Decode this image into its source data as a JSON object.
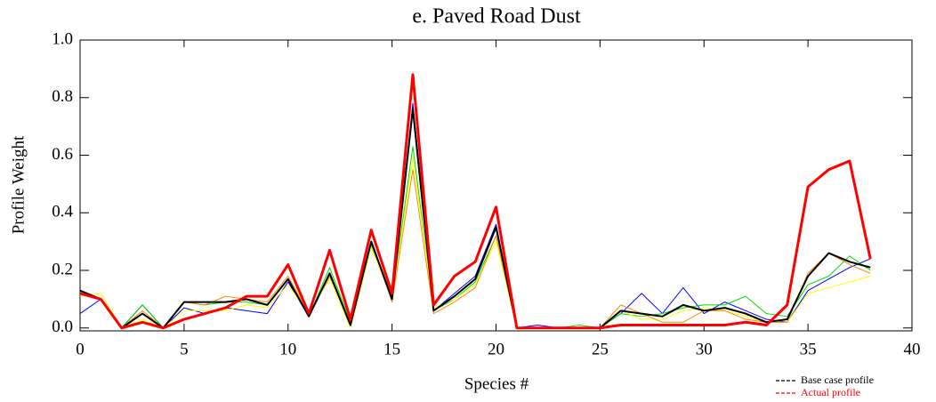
{
  "chart_data": {
    "type": "line",
    "title": "e.  Paved Road Dust",
    "x_label": "Species #",
    "y_label": "Profile Weight",
    "x": [
      0,
      1,
      2,
      3,
      4,
      5,
      6,
      7,
      8,
      9,
      10,
      11,
      12,
      13,
      14,
      15,
      16,
      17,
      18,
      19,
      20,
      21,
      22,
      23,
      24,
      25,
      26,
      27,
      28,
      29,
      30,
      31,
      32,
      33,
      34,
      35,
      36,
      37,
      38
    ],
    "xlim": [
      0,
      40
    ],
    "xticks": [
      0,
      5,
      10,
      15,
      20,
      25,
      30,
      35,
      40
    ],
    "ylim": [
      -0.01,
      1.0
    ],
    "yticks": [
      {
        "value": 0,
        "label": "0.0"
      },
      0.2,
      0.4,
      0.6,
      0.8,
      {
        "value": 1,
        "label": "1.0"
      }
    ],
    "grid": false,
    "series": [
      {
        "color": "#0000ff",
        "values": [
          0.05,
          0.1,
          0.0,
          0.08,
          0.0,
          0.07,
          0.05,
          0.07,
          0.06,
          0.05,
          0.16,
          0.04,
          0.18,
          0.02,
          0.29,
          0.1,
          0.78,
          0.06,
          0.12,
          0.18,
          0.36,
          0.0,
          0.01,
          0.0,
          0.0,
          0.0,
          0.05,
          0.12,
          0.05,
          0.14,
          0.05,
          0.09,
          0.06,
          0.03,
          0.02,
          0.13,
          0.17,
          0.21,
          0.24
        ]
      },
      {
        "color": "#00dd00",
        "values": [
          0.13,
          0.1,
          0.0,
          0.08,
          0.0,
          0.09,
          0.08,
          0.09,
          0.09,
          0.08,
          0.17,
          0.04,
          0.21,
          0.02,
          0.29,
          0.1,
          0.63,
          0.06,
          0.1,
          0.16,
          0.32,
          0.0,
          0.0,
          0.0,
          0.01,
          0.0,
          0.05,
          0.04,
          0.05,
          0.07,
          0.08,
          0.08,
          0.11,
          0.05,
          0.04,
          0.15,
          0.18,
          0.25,
          0.2
        ]
      },
      {
        "color": "#ffff00",
        "values": [
          0.11,
          0.12,
          0.0,
          0.03,
          0.0,
          0.06,
          0.06,
          0.06,
          0.08,
          0.07,
          0.15,
          0.05,
          0.17,
          0.0,
          0.28,
          0.1,
          0.59,
          0.07,
          0.1,
          0.15,
          0.3,
          0.0,
          0.0,
          0.0,
          0.0,
          0.0,
          0.06,
          0.03,
          0.03,
          0.06,
          0.07,
          0.06,
          0.04,
          0.02,
          0.02,
          0.12,
          0.14,
          0.16,
          0.18
        ]
      },
      {
        "color": "#ff8800",
        "values": [
          0.12,
          0.1,
          0.0,
          0.06,
          0.0,
          0.09,
          0.08,
          0.11,
          0.1,
          0.09,
          0.18,
          0.05,
          0.18,
          0.02,
          0.3,
          0.09,
          0.55,
          0.05,
          0.09,
          0.14,
          0.32,
          0.0,
          0.0,
          0.0,
          0.0,
          0.0,
          0.08,
          0.05,
          0.02,
          0.02,
          0.06,
          0.06,
          0.03,
          0.02,
          0.02,
          0.19,
          0.26,
          0.22,
          0.19
        ]
      },
      {
        "name": "Base case profile",
        "color": "#000000",
        "values": [
          0.13,
          0.1,
          0.0,
          0.05,
          0.0,
          0.09,
          0.09,
          0.09,
          0.1,
          0.08,
          0.17,
          0.04,
          0.19,
          0.01,
          0.3,
          0.1,
          0.76,
          0.06,
          0.11,
          0.17,
          0.35,
          0.0,
          0.0,
          0.0,
          0.0,
          0.0,
          0.06,
          0.05,
          0.04,
          0.08,
          0.06,
          0.07,
          0.05,
          0.02,
          0.03,
          0.18,
          0.26,
          0.23,
          0.21
        ]
      },
      {
        "name": "Actual profile",
        "color": "#ff0000",
        "values": [
          0.12,
          0.1,
          0.0,
          0.02,
          0.0,
          0.03,
          0.05,
          0.07,
          0.11,
          0.11,
          0.22,
          0.05,
          0.27,
          0.03,
          0.34,
          0.12,
          0.88,
          0.08,
          0.18,
          0.23,
          0.42,
          0.0,
          0.0,
          0.0,
          0.0,
          0.0,
          0.01,
          0.01,
          0.01,
          0.01,
          0.01,
          0.01,
          0.02,
          0.01,
          0.08,
          0.49,
          0.55,
          0.58,
          0.24
        ]
      }
    ]
  }
}
